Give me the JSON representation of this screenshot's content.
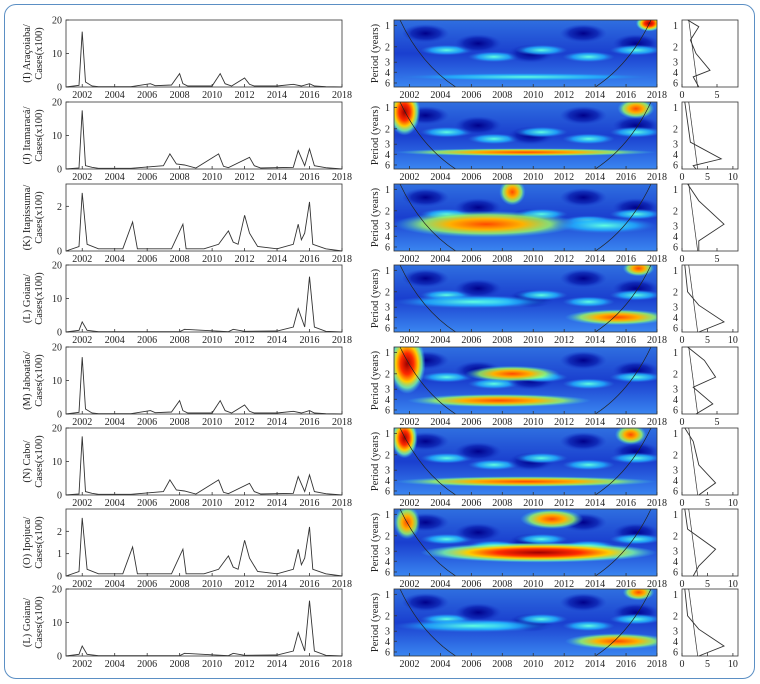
{
  "chart_data": [
    {
      "type": "line",
      "panel": "I",
      "ylabel_lines": [
        "(I) Araçoiaba/",
        "Cases(x100)"
      ],
      "x_range": [
        2001,
        2018
      ],
      "ylim": [
        0,
        20
      ],
      "yticks": [
        0,
        10,
        20
      ],
      "xticks": [
        "2002",
        "2004",
        "2006",
        "2008",
        "2010",
        "2012",
        "2014",
        "2016",
        "2018"
      ],
      "x": [
        2001.0,
        2001.8,
        2002.0,
        2002.2,
        2002.6,
        2003.0,
        2005.0,
        2006.2,
        2006.5,
        2007.5,
        2008.0,
        2008.2,
        2008.5,
        2010.0,
        2010.5,
        2010.8,
        2011.2,
        2012.0,
        2012.3,
        2012.6,
        2014.0,
        2015.0,
        2015.5,
        2016.0,
        2016.3,
        2017.0,
        2018.0
      ],
      "y": [
        0,
        0.5,
        16.5,
        1.5,
        0.3,
        0.1,
        0.1,
        1.0,
        0.4,
        0.6,
        4.0,
        1.0,
        0.3,
        0.3,
        4.0,
        1.0,
        0.3,
        2.7,
        0.8,
        0.3,
        0.3,
        0.8,
        0.3,
        1.0,
        0.3,
        0.1,
        0
      ]
    },
    {
      "type": "line",
      "panel": "J",
      "ylabel_lines": [
        "(J) Itamaracá/",
        "Cases(x100)"
      ],
      "x_range": [
        2001,
        2018
      ],
      "ylim": [
        0,
        20
      ],
      "yticks": [
        0,
        10,
        20
      ],
      "xticks": [
        "2002",
        "2004",
        "2006",
        "2008",
        "2010",
        "2012",
        "2014",
        "2016",
        "2018"
      ],
      "x": [
        2001.0,
        2001.8,
        2002.0,
        2002.2,
        2002.6,
        2003.0,
        2005.0,
        2007.0,
        2007.4,
        2007.8,
        2008.3,
        2009.0,
        2010.4,
        2010.7,
        2011.0,
        2012.3,
        2012.6,
        2013.0,
        2015.0,
        2015.3,
        2015.7,
        2016.0,
        2016.3,
        2017.0,
        2018.0
      ],
      "y": [
        0,
        0.3,
        17.5,
        1.0,
        0.5,
        0.2,
        0.2,
        1.0,
        4.5,
        1.5,
        1.2,
        0.3,
        4.5,
        0.8,
        0.4,
        3.5,
        1.0,
        0.3,
        0.5,
        5.5,
        1.0,
        6.0,
        1.0,
        0.4,
        0
      ]
    },
    {
      "type": "line",
      "panel": "K",
      "ylabel_lines": [
        "(K) Itapissuma/",
        "Cases(x100)"
      ],
      "x_range": [
        2001,
        2018
      ],
      "ylim": [
        0,
        3
      ],
      "yticks": [
        0,
        2
      ],
      "xticks": [
        "2002",
        "2004",
        "2006",
        "2008",
        "2010",
        "2012",
        "2014",
        "2016",
        "2018"
      ],
      "x": [
        2001.0,
        2001.8,
        2002.0,
        2002.3,
        2003.0,
        2004.5,
        2005.1,
        2005.4,
        2006.5,
        2007.5,
        2008.2,
        2008.4,
        2009.5,
        2010.4,
        2011.0,
        2011.3,
        2011.6,
        2012.0,
        2012.3,
        2012.8,
        2014.0,
        2015.0,
        2015.3,
        2015.5,
        2015.7,
        2016.0,
        2016.2,
        2017.0,
        2018.0
      ],
      "y": [
        0,
        0.2,
        2.6,
        0.3,
        0.1,
        0.1,
        1.3,
        0.1,
        0.1,
        0.1,
        1.2,
        0.1,
        0.1,
        0.3,
        0.9,
        0.4,
        0.3,
        1.6,
        0.8,
        0.2,
        0.1,
        0.3,
        1.2,
        0.5,
        0.8,
        2.2,
        0.3,
        0.1,
        0
      ]
    },
    {
      "type": "line",
      "panel": "L",
      "ylabel_lines": [
        "(L) Goiana/",
        "Cases(x100)"
      ],
      "x_range": [
        2001,
        2018
      ],
      "ylim": [
        0,
        20
      ],
      "yticks": [
        0,
        10,
        20
      ],
      "xticks": [
        "2002",
        "2004",
        "2006",
        "2008",
        "2010",
        "2012",
        "2014",
        "2016",
        "2018"
      ],
      "x": [
        2001.0,
        2001.8,
        2002.0,
        2002.3,
        2003.0,
        2008.0,
        2008.3,
        2011.0,
        2011.3,
        2012.0,
        2014.0,
        2015.0,
        2015.3,
        2015.7,
        2016.0,
        2016.3,
        2017.0,
        2018.0
      ],
      "y": [
        0,
        0.5,
        3.0,
        0.5,
        0.1,
        0.1,
        0.8,
        0.1,
        0.8,
        0.2,
        0.3,
        1.5,
        7.0,
        1.5,
        16.5,
        1.5,
        0.2,
        0
      ]
    },
    {
      "type": "line",
      "panel": "M",
      "ylabel_lines": [
        "(M) Jaboatão/",
        "Cases(x100)"
      ],
      "x_range": [
        2001,
        2018
      ],
      "ylim": [
        0,
        20
      ],
      "yticks": [
        0,
        10,
        20
      ],
      "xticks": [
        "2002",
        "2004",
        "2006",
        "2008",
        "2010",
        "2012",
        "2014",
        "2016",
        "2018"
      ],
      "x": [
        2001.0,
        2001.8,
        2002.0,
        2002.2,
        2002.6,
        2003.0,
        2005.0,
        2006.2,
        2006.5,
        2007.5,
        2008.0,
        2008.2,
        2008.5,
        2010.0,
        2010.5,
        2010.8,
        2011.2,
        2012.0,
        2012.3,
        2012.6,
        2014.0,
        2015.0,
        2015.5,
        2016.0,
        2016.3,
        2017.0,
        2018.0
      ],
      "y": [
        0,
        0.5,
        17.0,
        1.5,
        0.3,
        0.1,
        0.1,
        1.0,
        0.4,
        0.6,
        4.0,
        1.0,
        0.3,
        0.3,
        4.0,
        1.0,
        0.3,
        2.7,
        0.8,
        0.3,
        0.3,
        0.8,
        0.3,
        1.0,
        0.3,
        0.1,
        0
      ]
    },
    {
      "type": "line",
      "panel": "N",
      "ylabel_lines": [
        "(N) Cabo/",
        "Cases(x100)"
      ],
      "x_range": [
        2001,
        2018
      ],
      "ylim": [
        0,
        20
      ],
      "yticks": [
        0,
        10,
        20
      ],
      "xticks": [
        "2002",
        "2004",
        "2006",
        "2008",
        "2010",
        "2012",
        "2014",
        "2016",
        "2018"
      ],
      "x": [
        2001.0,
        2001.8,
        2002.0,
        2002.2,
        2002.6,
        2003.0,
        2005.0,
        2007.0,
        2007.4,
        2007.8,
        2008.3,
        2009.0,
        2010.4,
        2010.7,
        2011.0,
        2012.3,
        2012.6,
        2013.0,
        2015.0,
        2015.3,
        2015.7,
        2016.0,
        2016.3,
        2017.0,
        2018.0
      ],
      "y": [
        0,
        0.3,
        17.5,
        1.0,
        0.5,
        0.2,
        0.2,
        1.0,
        4.5,
        1.5,
        1.2,
        0.3,
        4.5,
        0.8,
        0.4,
        3.5,
        1.0,
        0.3,
        0.5,
        5.5,
        1.0,
        6.0,
        1.0,
        0.4,
        0
      ]
    },
    {
      "type": "line",
      "panel": "O",
      "ylabel_lines": [
        "(O) Ipojuca/",
        "Cases(x100)"
      ],
      "x_range": [
        2001,
        2018
      ],
      "ylim": [
        0,
        3
      ],
      "yticks": [
        0,
        1,
        2
      ],
      "xticks": [
        "2002",
        "2004",
        "2006",
        "2008",
        "2010",
        "2012",
        "2014",
        "2016",
        "2018"
      ],
      "x": [
        2001.0,
        2001.8,
        2002.0,
        2002.3,
        2003.0,
        2004.5,
        2005.1,
        2005.4,
        2006.5,
        2007.5,
        2008.2,
        2008.4,
        2009.5,
        2010.4,
        2011.0,
        2011.3,
        2011.6,
        2012.0,
        2012.3,
        2012.8,
        2014.0,
        2015.0,
        2015.3,
        2015.5,
        2015.7,
        2016.0,
        2016.2,
        2017.0,
        2018.0
      ],
      "y": [
        0,
        0.2,
        2.6,
        0.3,
        0.1,
        0.1,
        1.3,
        0.1,
        0.1,
        0.1,
        1.2,
        0.1,
        0.1,
        0.3,
        0.9,
        0.4,
        0.3,
        1.6,
        0.8,
        0.2,
        0.1,
        0.3,
        1.2,
        0.5,
        0.8,
        2.2,
        0.3,
        0.1,
        0
      ]
    },
    {
      "type": "line",
      "panel": "L2",
      "ylabel_lines": [
        "(L) Goiana/",
        "Cases(x100)"
      ],
      "x_range": [
        2001,
        2018
      ],
      "ylim": [
        0,
        20
      ],
      "yticks": [
        0,
        10,
        20
      ],
      "xticks": [
        "2002",
        "2004",
        "2006",
        "2008",
        "2010",
        "2012",
        "2014",
        "2016",
        "2018"
      ],
      "x": [
        2001.0,
        2001.8,
        2002.0,
        2002.3,
        2003.0,
        2008.0,
        2008.3,
        2011.0,
        2011.3,
        2012.0,
        2014.0,
        2015.0,
        2015.3,
        2015.7,
        2016.0,
        2016.3,
        2017.0,
        2018.0
      ],
      "y": [
        0,
        0.5,
        3.0,
        0.5,
        0.1,
        0.1,
        0.8,
        0.1,
        0.8,
        0.2,
        0.3,
        1.5,
        7.0,
        1.5,
        16.5,
        1.5,
        0.2,
        0
      ]
    },
    {
      "type": "heatmap",
      "wavelet": true,
      "ylabel": "Period (years)",
      "yticks": [
        "1",
        "2",
        "3",
        "4",
        "6"
      ],
      "xticks": [
        "2002",
        "2004",
        "2006",
        "2008",
        "2010",
        "2012",
        "2014",
        "2016",
        "2018"
      ],
      "count": 8
    },
    {
      "type": "line",
      "global_spectrum": true,
      "yticks": [
        "1",
        "2",
        "3",
        "4",
        "6"
      ],
      "xticks_per_panel": [
        [
          "0",
          "5"
        ],
        [
          "0",
          "5",
          "10"
        ],
        [
          "0",
          "5"
        ],
        [
          "0",
          "5",
          "10"
        ],
        [
          "0",
          "5"
        ],
        [
          "0",
          "5",
          "10"
        ],
        [
          "0",
          "5",
          "10"
        ],
        [
          "0",
          "5",
          "10"
        ]
      ]
    }
  ],
  "colors": {
    "frame": "#5b8fc4",
    "line": "#333333"
  }
}
